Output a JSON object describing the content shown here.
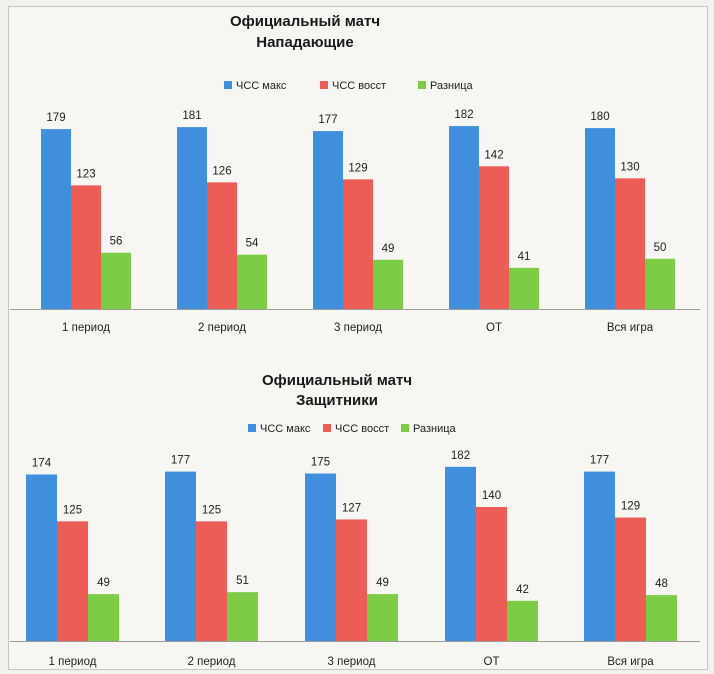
{
  "colors": {
    "ЧСС макс": "#3f8fdc",
    "ЧСС восст": "#ec5d55",
    "Разница": "#7ccd45"
  },
  "chart_data": [
    {
      "type": "bar",
      "title": "Официальный матч",
      "subtitle": "Нападающие",
      "categories": [
        "1 период",
        "2 период",
        "3 период",
        "ОТ",
        "Вся игра"
      ],
      "series": [
        {
          "name": "ЧСС макс",
          "values": [
            179,
            181,
            177,
            182,
            180
          ]
        },
        {
          "name": "ЧСС восст",
          "values": [
            123,
            126,
            129,
            142,
            130
          ]
        },
        {
          "name": "Разница",
          "values": [
            56,
            54,
            49,
            41,
            50
          ]
        }
      ],
      "legend": "top-center",
      "ylim": [
        0,
        190
      ],
      "grid": false
    },
    {
      "type": "bar",
      "title": "Официальный матч",
      "subtitle": "Защитники",
      "categories": [
        "1 период",
        "2 период",
        "3 период",
        "ОТ",
        "Вся игра"
      ],
      "series": [
        {
          "name": "ЧСС макс",
          "values": [
            174,
            177,
            175,
            182,
            177
          ]
        },
        {
          "name": "ЧСС восст",
          "values": [
            125,
            125,
            127,
            140,
            129
          ]
        },
        {
          "name": "Разница",
          "values": [
            49,
            51,
            49,
            42,
            48
          ]
        }
      ],
      "legend": "top-center",
      "ylim": [
        0,
        190
      ],
      "grid": false
    }
  ]
}
